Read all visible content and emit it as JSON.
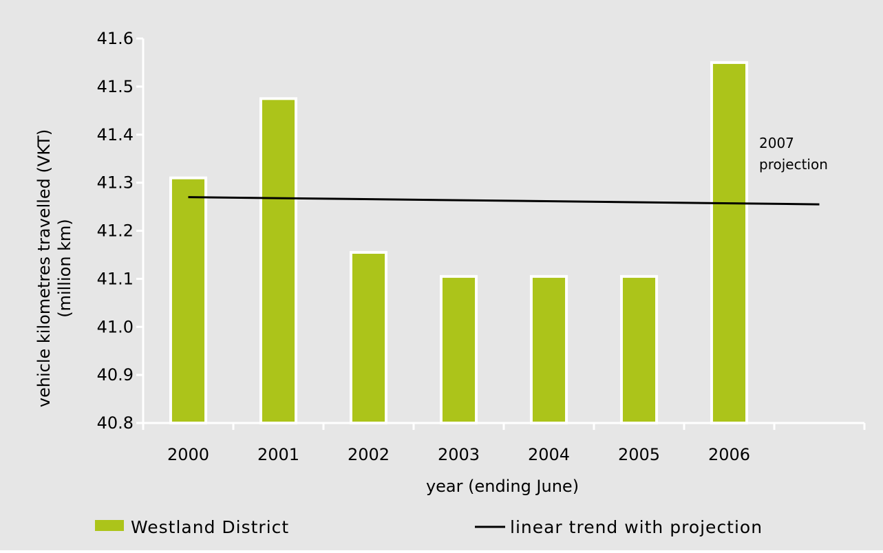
{
  "chart_data": {
    "type": "bar",
    "categories": [
      "2000",
      "2001",
      "2002",
      "2003",
      "2004",
      "2005",
      "2006"
    ],
    "series": [
      {
        "name": "Westland District",
        "type": "bar",
        "values": [
          41.31,
          41.475,
          41.155,
          41.105,
          41.105,
          41.105,
          41.55
        ]
      }
    ],
    "trend": {
      "name": "linear trend with projection",
      "start_value": 41.27,
      "end_value": 41.255
    },
    "xlabel": "year (ending June)",
    "ylabel_lines": [
      "vehicle kilometres travelled (VKT)",
      "(million km)"
    ],
    "ylim": [
      40.8,
      41.6
    ],
    "yticks": [
      "40.8",
      "40.9",
      "41.0",
      "41.1",
      "41.2",
      "41.3",
      "41.4",
      "41.5",
      "41.6"
    ],
    "annotation_lines": [
      "2007",
      "projection"
    ],
    "grid": false,
    "legend_position": "bottom",
    "colors": {
      "background": "#e6e6e6",
      "bar": "#acc41a",
      "bar_border": "#ffffff",
      "trend": "#000000",
      "axis": "#ffffff"
    }
  }
}
